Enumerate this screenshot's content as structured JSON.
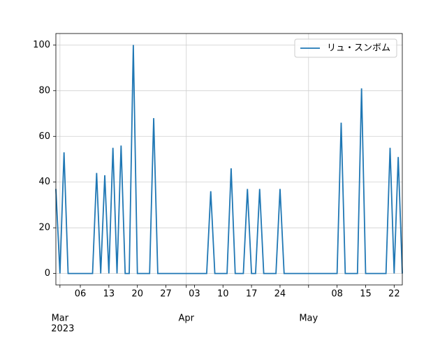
{
  "chart_data": {
    "type": "line",
    "x": [
      "2023-02-28",
      "2023-03-01",
      "2023-03-02",
      "2023-03-03",
      "2023-03-04",
      "2023-03-05",
      "2023-03-06",
      "2023-03-07",
      "2023-03-08",
      "2023-03-09",
      "2023-03-10",
      "2023-03-11",
      "2023-03-12",
      "2023-03-13",
      "2023-03-14",
      "2023-03-15",
      "2023-03-16",
      "2023-03-17",
      "2023-03-18",
      "2023-03-19",
      "2023-03-20",
      "2023-03-21",
      "2023-03-22",
      "2023-03-23",
      "2023-03-24",
      "2023-03-25",
      "2023-03-26",
      "2023-03-27",
      "2023-03-28",
      "2023-03-29",
      "2023-03-30",
      "2023-03-31",
      "2023-04-01",
      "2023-04-02",
      "2023-04-03",
      "2023-04-04",
      "2023-04-05",
      "2023-04-06",
      "2023-04-07",
      "2023-04-08",
      "2023-04-09",
      "2023-04-10",
      "2023-04-11",
      "2023-04-12",
      "2023-04-13",
      "2023-04-14",
      "2023-04-15",
      "2023-04-16",
      "2023-04-17",
      "2023-04-18",
      "2023-04-19",
      "2023-04-20",
      "2023-04-21",
      "2023-04-22",
      "2023-04-23",
      "2023-04-24",
      "2023-04-25",
      "2023-04-26",
      "2023-04-27",
      "2023-04-28",
      "2023-04-29",
      "2023-04-30",
      "2023-05-01",
      "2023-05-02",
      "2023-05-03",
      "2023-05-04",
      "2023-05-05",
      "2023-05-06",
      "2023-05-07",
      "2023-05-08",
      "2023-05-09",
      "2023-05-10",
      "2023-05-11",
      "2023-05-12",
      "2023-05-13",
      "2023-05-14",
      "2023-05-15",
      "2023-05-16",
      "2023-05-17",
      "2023-05-18",
      "2023-05-19",
      "2023-05-20",
      "2023-05-21",
      "2023-05-22",
      "2023-05-23",
      "2023-05-24"
    ],
    "series": [
      {
        "name": "リュ・スンボム",
        "color": "#1f77b4",
        "values": [
          37,
          0,
          53,
          0,
          0,
          0,
          0,
          0,
          0,
          0,
          44,
          0,
          43,
          0,
          55,
          0,
          56,
          0,
          0,
          100,
          0,
          0,
          0,
          0,
          68,
          0,
          0,
          0,
          0,
          0,
          0,
          0,
          0,
          0,
          0,
          0,
          0,
          0,
          36,
          0,
          0,
          0,
          0,
          46,
          0,
          0,
          0,
          37,
          0,
          0,
          37,
          0,
          0,
          0,
          0,
          37,
          0,
          0,
          0,
          0,
          0,
          0,
          0,
          0,
          0,
          0,
          0,
          0,
          0,
          0,
          66,
          0,
          0,
          0,
          0,
          81,
          0,
          0,
          0,
          0,
          0,
          0,
          55,
          0,
          51,
          0
        ]
      }
    ],
    "xlim": [
      "2023-02-28",
      "2023-05-24"
    ],
    "xticks": [
      {
        "value": "2023-03-06",
        "label": "06"
      },
      {
        "value": "2023-03-13",
        "label": "13"
      },
      {
        "value": "2023-03-20",
        "label": "20"
      },
      {
        "value": "2023-03-27",
        "label": "27"
      },
      {
        "value": "2023-04-03",
        "label": "03"
      },
      {
        "value": "2023-04-10",
        "label": "10"
      },
      {
        "value": "2023-04-17",
        "label": "17"
      },
      {
        "value": "2023-04-24",
        "label": "24"
      },
      {
        "value": "2023-05-08",
        "label": "08"
      },
      {
        "value": "2023-05-15",
        "label": "15"
      },
      {
        "value": "2023-05-22",
        "label": "22"
      }
    ],
    "x_major_ticks": [
      {
        "value": "2023-03-01",
        "label": "Mar"
      },
      {
        "value": "2023-04-01",
        "label": "Apr"
      },
      {
        "value": "2023-05-01",
        "label": "May"
      }
    ],
    "x_offset_label": "2023",
    "ylim": [
      -5,
      105
    ],
    "yticks": [
      0,
      20,
      40,
      60,
      80,
      100
    ],
    "grid": true,
    "legend": "upper right"
  }
}
